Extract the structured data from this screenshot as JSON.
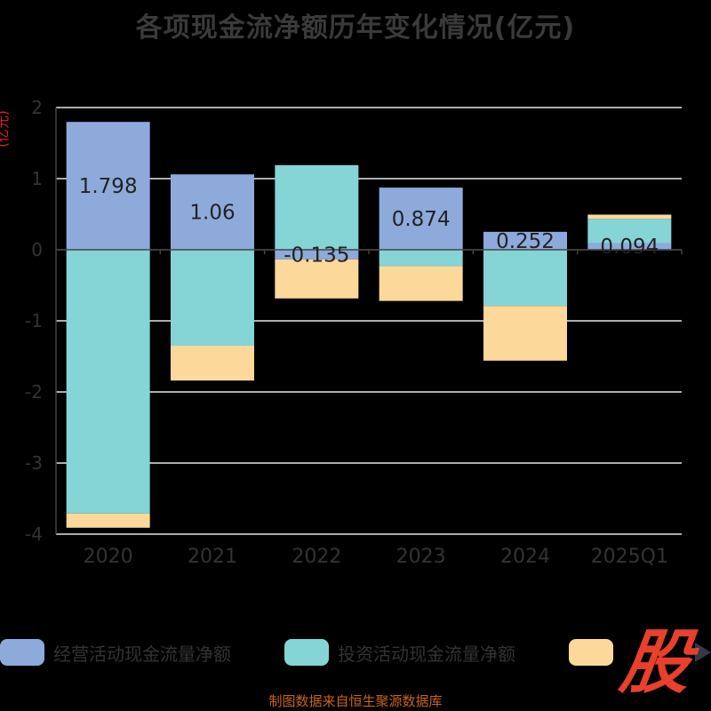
{
  "chart_data": {
    "type": "bar",
    "stacked": true,
    "title": "各项现金流净额历年变化情况(亿元)",
    "ylabel": "(亿元)",
    "xlabel": "",
    "categories": [
      "2020",
      "2021",
      "2022",
      "2023",
      "2024",
      "2025Q1"
    ],
    "ylim": [
      -4,
      2
    ],
    "yticks": [
      2,
      1,
      0,
      -1,
      -2,
      -3,
      -4
    ],
    "grid": true,
    "legend_position": "bottom",
    "series": [
      {
        "name": "经营活动现金流量净额",
        "color": "#8eaadb",
        "values": [
          1.798,
          1.06,
          -0.135,
          0.874,
          0.252,
          0.094
        ],
        "labels": [
          "1.798",
          "1.06",
          "-0.135",
          "0.874",
          "0.252",
          "0.094"
        ]
      },
      {
        "name": "投资活动现金流量净额",
        "color": "#85d4d6",
        "values": [
          -3.71,
          -1.35,
          1.19,
          -0.23,
          -0.79,
          0.34
        ]
      },
      {
        "color": "#fcd89a",
        "values": [
          -0.2,
          -0.49,
          -0.55,
          -0.49,
          -0.77,
          0.06
        ]
      }
    ]
  },
  "logo_text": "股",
  "source": "制图数据来自恒生聚源数据库"
}
